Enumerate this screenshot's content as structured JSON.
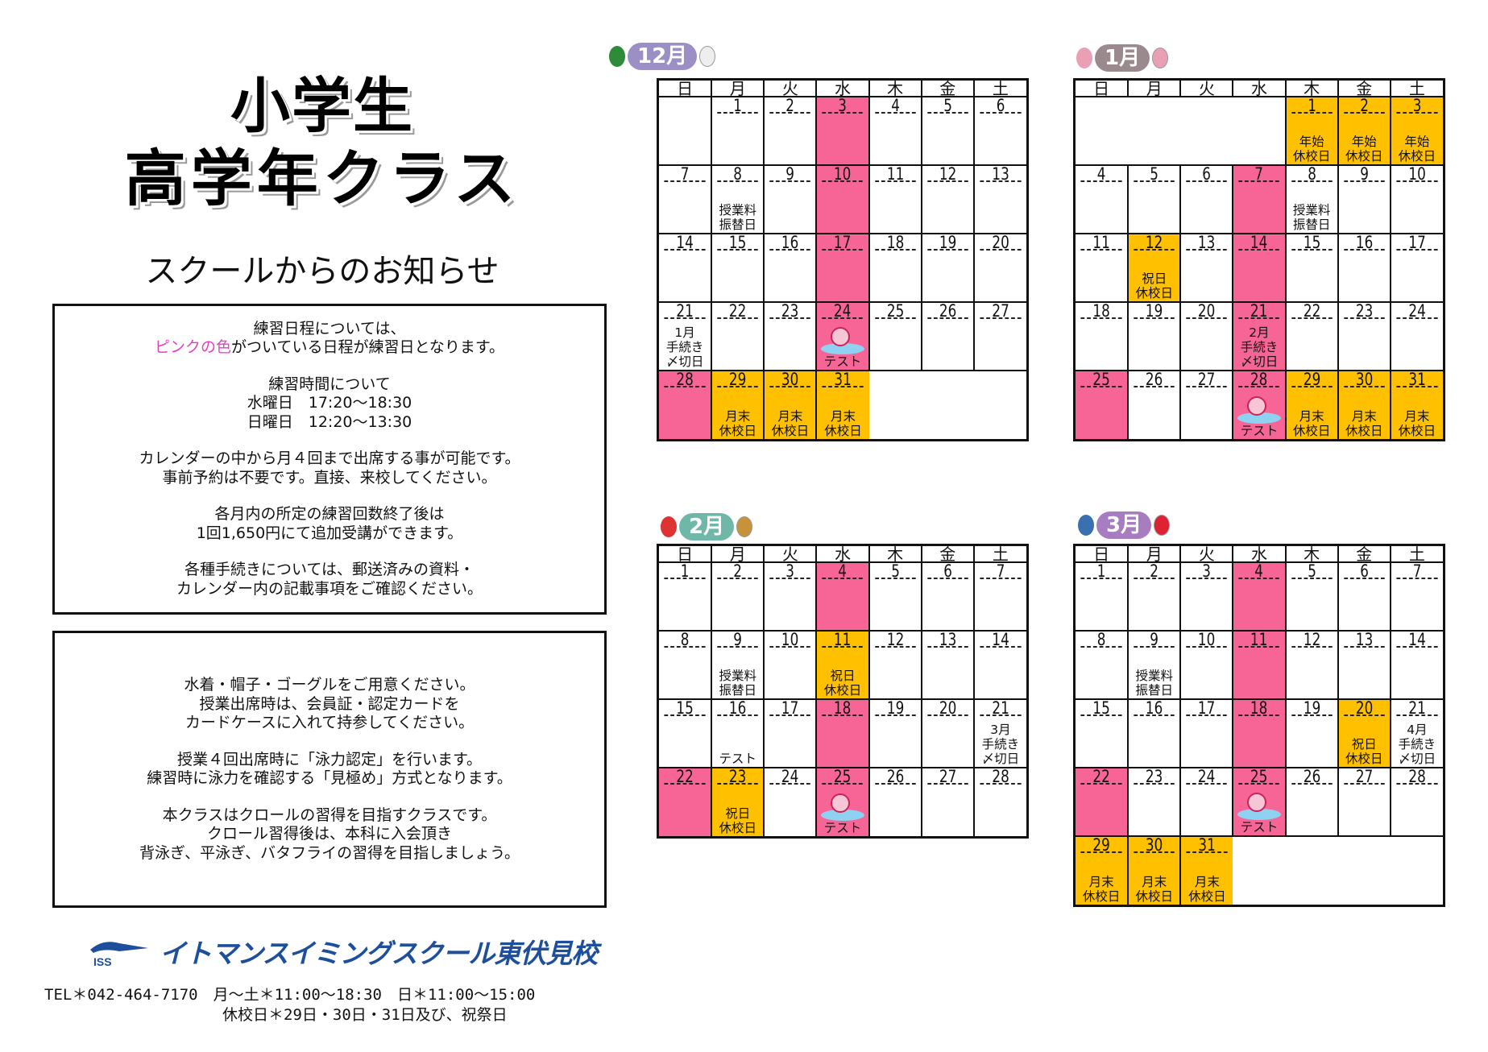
{
  "title": {
    "line1": "小学生",
    "line2": "高学年クラス",
    "subtitle": "スクールからのお知らせ"
  },
  "notice1": {
    "l1": "練習日程については、",
    "l2_pink": "ピンクの色",
    "l2_rest": "がついている日程が練習日となります。",
    "l3": "練習時間について",
    "l4": "水曜日　17:20～18:30",
    "l5": "日曜日　12:20～13:30",
    "l6": "カレンダーの中から月４回まで出席する事が可能です。",
    "l7": "事前予約は不要です。直接、来校してください。",
    "l8": "各月内の所定の練習回数終了後は",
    "l9": "1回1,650円にて追加受講ができます。",
    "l10": "各種手続きについては、郵送済みの資料・",
    "l11": "カレンダー内の記載事項をご確認ください。"
  },
  "notice2": {
    "l1": "水着・帽子・ゴーグルをご用意ください。",
    "l2": "授業出席時は、会員証・認定カードを",
    "l3": "カードケースに入れて持参してください。",
    "l4": "授業４回出席時に「泳力認定」を行います。",
    "l5": "練習時に泳力を確認する「見極め」方式となります。",
    "l6": "本クラスはクロールの習得を目指すクラスです。",
    "l7": "クロール習得後は、本科に入会頂き",
    "l8": "背泳ぎ、平泳ぎ、バタフライの習得を目指しましょう。"
  },
  "footer": {
    "logo_mark": "ISS",
    "logo_text": "イトマンスイミングスクール東伏見校",
    "tel": "TEL＊042-464-7170　月～土＊11:00～18:30　日＊11:00～15:00",
    "holidays": "休校日＊29日・30日・31日及び、祝祭日"
  },
  "colors": {
    "practice": "#f76597",
    "closed": "#ffc000",
    "logo": "#1d4f9c",
    "pink_text": "#e040c8"
  },
  "weekdays": [
    "日",
    "月",
    "火",
    "水",
    "木",
    "金",
    "土"
  ],
  "calendars": [
    {
      "label": "12月",
      "color": "#9b8fc6",
      "weeks": [
        [
          null,
          {
            "d": "1"
          },
          {
            "d": "2"
          },
          {
            "d": "3",
            "c": "p"
          },
          {
            "d": "4"
          },
          {
            "d": "5"
          },
          {
            "d": "6"
          }
        ],
        [
          {
            "d": "7"
          },
          {
            "d": "8",
            "n": [
              "授業料",
              "振替日"
            ]
          },
          {
            "d": "9"
          },
          {
            "d": "10",
            "c": "p"
          },
          {
            "d": "11"
          },
          {
            "d": "12"
          },
          {
            "d": "13"
          }
        ],
        [
          {
            "d": "14"
          },
          {
            "d": "15"
          },
          {
            "d": "16"
          },
          {
            "d": "17",
            "c": "p"
          },
          {
            "d": "18"
          },
          {
            "d": "19"
          },
          {
            "d": "20"
          }
        ],
        [
          {
            "d": "21",
            "n": [
              "1月",
              "手続き",
              "〆切日"
            ]
          },
          {
            "d": "22"
          },
          {
            "d": "23"
          },
          {
            "d": "24",
            "c": "p",
            "test": true,
            "n": [
              "テスト"
            ]
          },
          {
            "d": "25"
          },
          {
            "d": "26"
          },
          {
            "d": "27"
          }
        ],
        [
          {
            "d": "28",
            "c": "p"
          },
          {
            "d": "29",
            "c": "y",
            "n": [
              "月末",
              "休校日"
            ]
          },
          {
            "d": "30",
            "c": "y",
            "n": [
              "月末",
              "休校日"
            ]
          },
          {
            "d": "31",
            "c": "y",
            "n": [
              "月末",
              "休校日"
            ]
          },
          null,
          null,
          null
        ]
      ]
    },
    {
      "label": "1月",
      "color": "#9a8a8e",
      "weeks": [
        [
          null,
          null,
          null,
          null,
          {
            "d": "1",
            "c": "y",
            "n": [
              "年始",
              "休校日"
            ]
          },
          {
            "d": "2",
            "c": "y",
            "n": [
              "年始",
              "休校日"
            ]
          },
          {
            "d": "3",
            "c": "y",
            "n": [
              "年始",
              "休校日"
            ]
          }
        ],
        [
          {
            "d": "4"
          },
          {
            "d": "5"
          },
          {
            "d": "6"
          },
          {
            "d": "7",
            "c": "p"
          },
          {
            "d": "8",
            "n": [
              "授業料",
              "振替日"
            ]
          },
          {
            "d": "9"
          },
          {
            "d": "10"
          }
        ],
        [
          {
            "d": "11"
          },
          {
            "d": "12",
            "c": "y",
            "n": [
              "祝日",
              "休校日"
            ]
          },
          {
            "d": "13"
          },
          {
            "d": "14",
            "c": "p"
          },
          {
            "d": "15"
          },
          {
            "d": "16"
          },
          {
            "d": "17"
          }
        ],
        [
          {
            "d": "18"
          },
          {
            "d": "19"
          },
          {
            "d": "20"
          },
          {
            "d": "21",
            "c": "p",
            "n": [
              "2月",
              "手続き",
              "〆切日"
            ]
          },
          {
            "d": "22"
          },
          {
            "d": "23"
          },
          {
            "d": "24"
          }
        ],
        [
          {
            "d": "25",
            "c": "p"
          },
          {
            "d": "26"
          },
          {
            "d": "27"
          },
          {
            "d": "28",
            "c": "p",
            "test": true,
            "n": [
              "テスト"
            ]
          },
          {
            "d": "29",
            "c": "y",
            "n": [
              "月末",
              "休校日"
            ]
          },
          {
            "d": "30",
            "c": "y",
            "n": [
              "月末",
              "休校日"
            ]
          },
          {
            "d": "31",
            "c": "y",
            "n": [
              "月末",
              "休校日"
            ]
          }
        ]
      ]
    },
    {
      "label": "2月",
      "color": "#6fb7a8",
      "weeks": [
        [
          {
            "d": "1"
          },
          {
            "d": "2"
          },
          {
            "d": "3"
          },
          {
            "d": "4",
            "c": "p"
          },
          {
            "d": "5"
          },
          {
            "d": "6"
          },
          {
            "d": "7"
          }
        ],
        [
          {
            "d": "8"
          },
          {
            "d": "9",
            "n": [
              "授業料",
              "振替日"
            ]
          },
          {
            "d": "10"
          },
          {
            "d": "11",
            "c": "y",
            "n": [
              "祝日",
              "休校日"
            ]
          },
          {
            "d": "12"
          },
          {
            "d": "13"
          },
          {
            "d": "14"
          }
        ],
        [
          {
            "d": "15"
          },
          {
            "d": "16",
            "n": [
              "テスト"
            ]
          },
          {
            "d": "17"
          },
          {
            "d": "18",
            "c": "p"
          },
          {
            "d": "19"
          },
          {
            "d": "20"
          },
          {
            "d": "21",
            "n": [
              "3月",
              "手続き",
              "〆切日"
            ]
          }
        ],
        [
          {
            "d": "22",
            "c": "p"
          },
          {
            "d": "23",
            "c": "y",
            "n": [
              "祝日",
              "休校日"
            ]
          },
          {
            "d": "24"
          },
          {
            "d": "25",
            "c": "p",
            "test": true,
            "n": [
              "テスト"
            ]
          },
          {
            "d": "26"
          },
          {
            "d": "27"
          },
          {
            "d": "28"
          }
        ]
      ]
    },
    {
      "label": "3月",
      "color": "#a77cc0",
      "weeks": [
        [
          {
            "d": "1"
          },
          {
            "d": "2"
          },
          {
            "d": "3"
          },
          {
            "d": "4",
            "c": "p"
          },
          {
            "d": "5"
          },
          {
            "d": "6"
          },
          {
            "d": "7"
          }
        ],
        [
          {
            "d": "8"
          },
          {
            "d": "9",
            "n": [
              "授業料",
              "振替日"
            ]
          },
          {
            "d": "10"
          },
          {
            "d": "11",
            "c": "p"
          },
          {
            "d": "12"
          },
          {
            "d": "13"
          },
          {
            "d": "14"
          }
        ],
        [
          {
            "d": "15"
          },
          {
            "d": "16"
          },
          {
            "d": "17"
          },
          {
            "d": "18",
            "c": "p"
          },
          {
            "d": "19"
          },
          {
            "d": "20",
            "c": "y",
            "n": [
              "祝日",
              "休校日"
            ]
          },
          {
            "d": "21",
            "n": [
              "4月",
              "手続き",
              "〆切日"
            ]
          }
        ],
        [
          {
            "d": "22",
            "c": "p"
          },
          {
            "d": "23"
          },
          {
            "d": "24"
          },
          {
            "d": "25",
            "c": "p",
            "test": true,
            "n": [
              "テスト"
            ]
          },
          {
            "d": "26"
          },
          {
            "d": "27"
          },
          {
            "d": "28"
          }
        ],
        [
          {
            "d": "29",
            "c": "y",
            "n": [
              "月末",
              "休校日"
            ]
          },
          {
            "d": "30",
            "c": "y",
            "n": [
              "月末",
              "休校日"
            ]
          },
          {
            "d": "31",
            "c": "y",
            "n": [
              "月末",
              "休校日"
            ]
          },
          null,
          null,
          null,
          null
        ]
      ]
    }
  ]
}
